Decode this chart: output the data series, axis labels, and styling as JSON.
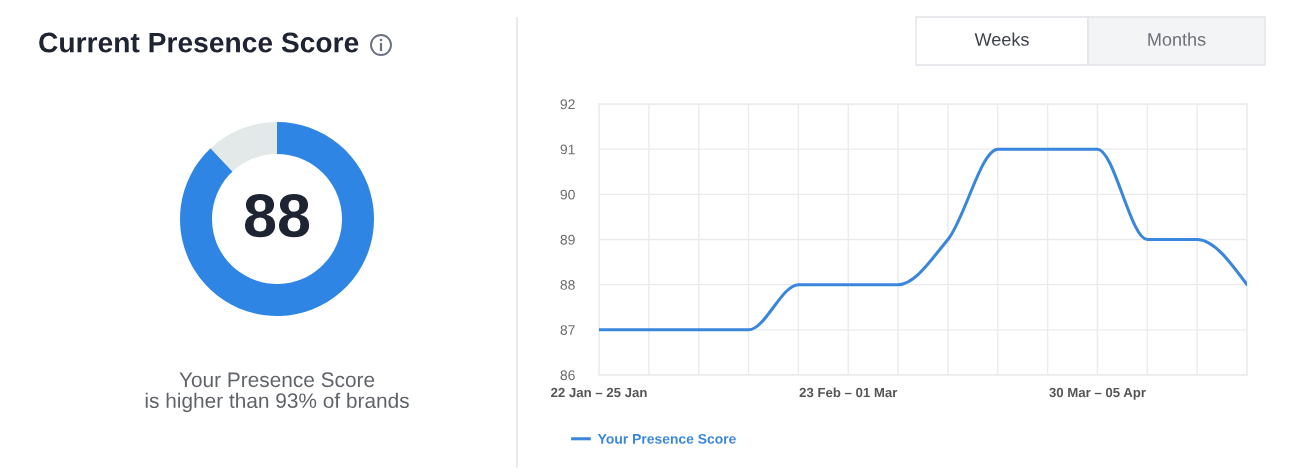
{
  "chart_data": [
    {
      "type": "donut",
      "title": "Current Presence Score",
      "categories": [
        null,
        null
      ],
      "values": [
        88,
        12
      ],
      "colors": [
        "#2e85e3",
        "#e3e8e8"
      ],
      "value_labels": [
        "88",
        null
      ],
      "annotations": [
        "Your Presence Score\nis higher than 93% of brands"
      ]
    },
    {
      "type": "line",
      "categories": [
        "22 Jan – 25 Jan",
        null,
        null,
        null,
        null,
        "23 Feb – 01 Mar",
        null,
        null,
        null,
        null,
        "30 Mar – 05 Apr",
        null,
        null,
        null
      ],
      "series": [
        {
          "name": "Your Presence Score",
          "color": "#3a86dc",
          "values": [
            87,
            87,
            87,
            87,
            88,
            88,
            88,
            89,
            91,
            91,
            91,
            89,
            89,
            88
          ]
        }
      ],
      "ylim": [
        86,
        92
      ],
      "yticks": [
        86,
        87,
        88,
        89,
        90,
        91,
        92
      ],
      "grid": true,
      "legend": "bottom",
      "annotations": [
        "Weeks",
        "Months"
      ]
    }
  ]
}
